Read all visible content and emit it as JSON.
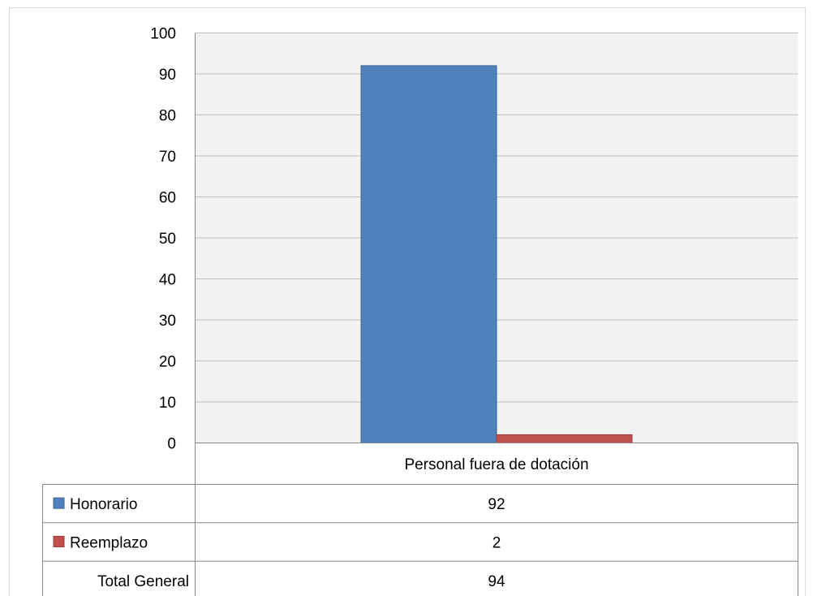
{
  "chart_data": {
    "type": "bar",
    "categories": [
      "Personal fuera de dotación"
    ],
    "series": [
      {
        "name": "Honorario",
        "values": [
          92
        ],
        "color": "#4F81BD"
      },
      {
        "name": "Reemplazo",
        "values": [
          2
        ],
        "color": "#C0504D"
      }
    ],
    "ylim": [
      0,
      100
    ],
    "yticks": [
      0,
      10,
      20,
      30,
      40,
      50,
      60,
      70,
      80,
      90,
      100
    ],
    "grid": true,
    "plot_background": "#F2F2F2",
    "data_table": {
      "rows": [
        {
          "label": "Honorario",
          "values": [
            "92"
          ],
          "legend_key": true,
          "color": "#4F81BD"
        },
        {
          "label": "Reemplazo",
          "values": [
            "2"
          ],
          "legend_key": true,
          "color": "#C0504D"
        },
        {
          "label": "Total General",
          "values": [
            "94"
          ],
          "legend_key": false
        }
      ]
    }
  }
}
